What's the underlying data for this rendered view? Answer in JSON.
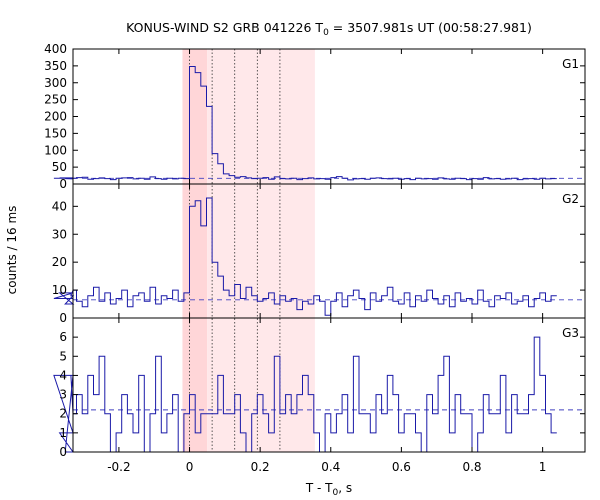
{
  "chart_data": {
    "type": "line",
    "title": {
      "prefix": "KONUS-WIND S2 GRB 041226 T",
      "sub": "0",
      "suffix": " = 3507.981s UT (00:58:27.981)"
    },
    "xlabel": {
      "prefix": "T - T",
      "sub": "0",
      "suffix": ", s"
    },
    "ylabel": "counts / 16 ms",
    "xlim": [
      -0.33,
      1.12
    ],
    "x_ticks": [
      -0.2,
      0,
      0.2,
      0.4,
      0.6,
      0.8,
      1
    ],
    "x_tick_labels": [
      "-0.2",
      "0",
      "0.2",
      "0.4",
      "0.6",
      "0.8",
      "1"
    ],
    "shaded_intervals": [
      {
        "x0": -0.02,
        "x1": 0.05,
        "color": "#ffd6d8"
      },
      {
        "x0": 0.05,
        "x1": 0.355,
        "color": "#ffe8ea"
      }
    ],
    "vertical_dotted_lines": [
      0.0,
      0.064,
      0.128,
      0.192,
      0.256
    ],
    "bin_width_s": 0.016,
    "line_color": "#1a1aa8",
    "background_color": "#4040c0",
    "panels": [
      {
        "name": "G1",
        "ylim": [
          0,
          400
        ],
        "yticks": [
          0,
          50,
          100,
          150,
          200,
          250,
          300,
          350,
          400
        ],
        "background_level": 17,
        "counts": [
          17,
          18,
          16,
          15,
          17,
          19,
          20,
          14,
          16,
          18,
          16,
          13,
          17,
          18,
          19,
          15,
          17,
          14,
          21,
          16,
          14,
          17,
          15,
          17,
          16,
          348,
          330,
          290,
          230,
          90,
          60,
          30,
          25,
          20,
          22,
          18,
          16,
          17,
          19,
          14,
          21,
          16,
          15,
          17,
          13,
          16,
          18,
          15,
          16,
          14,
          19,
          22,
          17,
          12,
          15,
          16,
          14,
          17,
          18,
          16,
          15,
          17,
          14,
          16,
          13,
          17,
          15,
          16,
          14,
          18,
          15,
          14,
          17,
          16,
          13,
          16,
          14,
          19,
          15,
          16,
          14,
          15,
          17,
          13,
          15,
          16,
          14,
          17,
          15,
          16
        ]
      },
      {
        "name": "G2",
        "ylim": [
          0,
          48
        ],
        "yticks": [
          0,
          10,
          20,
          30,
          40
        ],
        "background_level": 6.5,
        "counts": [
          7,
          9,
          5,
          8,
          10,
          6,
          4,
          8,
          11,
          6,
          9,
          5,
          7,
          10,
          4,
          8,
          9,
          6,
          11,
          5,
          8,
          7,
          10,
          6,
          9,
          40,
          42,
          33,
          43,
          20,
          15,
          10,
          8,
          12,
          7,
          11,
          8,
          6,
          7,
          9,
          5,
          8,
          6,
          7,
          3,
          6,
          5,
          8,
          6,
          1,
          6,
          9,
          4,
          8,
          10,
          7,
          3,
          9,
          6,
          8,
          11,
          6,
          5,
          9,
          4,
          8,
          6,
          10,
          7,
          5,
          8,
          4,
          9,
          6,
          7,
          5,
          10,
          6,
          4,
          8,
          7,
          9,
          5,
          6,
          8,
          4,
          7,
          9,
          6,
          8
        ]
      },
      {
        "name": "G3",
        "ylim": [
          0,
          7
        ],
        "yticks": [
          0,
          1,
          2,
          3,
          4,
          5,
          6
        ],
        "background_level": 2.2,
        "counts": [
          4,
          1,
          0,
          4,
          2,
          3,
          2,
          4,
          3,
          5,
          2,
          0,
          1,
          3,
          2,
          1,
          4,
          0,
          2,
          5,
          1,
          2,
          3,
          0,
          2,
          3,
          1,
          2,
          2,
          2,
          4,
          2,
          2,
          3,
          1,
          0,
          2,
          3,
          2,
          1,
          5,
          2,
          3,
          2,
          3,
          4,
          3,
          1,
          0,
          2,
          1,
          2,
          3,
          1,
          5,
          2,
          2,
          1,
          3,
          2,
          4,
          3,
          1,
          2,
          2,
          1,
          0,
          3,
          2,
          4,
          5,
          1,
          3,
          2,
          2,
          0,
          1,
          3,
          2,
          2,
          4,
          1,
          3,
          2,
          2,
          3,
          6,
          4,
          2,
          1
        ]
      }
    ]
  }
}
